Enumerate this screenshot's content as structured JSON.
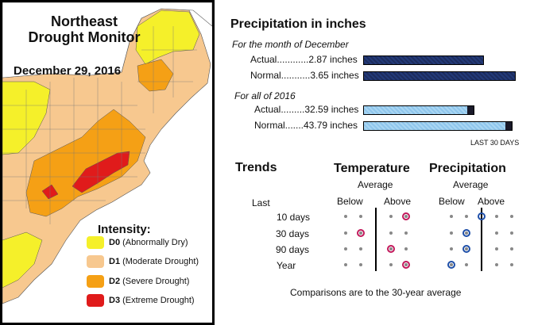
{
  "map": {
    "title_line1": "Northeast",
    "title_line2": "Drought Monitor",
    "date": "December 29, 2016",
    "legend": {
      "title": "Intensity:",
      "items": [
        {
          "code": "D0",
          "desc": "(Abnormally Dry)",
          "color": "#f5f02a"
        },
        {
          "code": "D1",
          "desc": "(Moderate Drought)",
          "color": "#f7c88f"
        },
        {
          "code": "D2",
          "desc": "(Severe Drought)",
          "color": "#f5a015"
        },
        {
          "code": "D3",
          "desc": "(Extreme Drought)",
          "color": "#e01b1b"
        }
      ]
    }
  },
  "precip": {
    "title": "Precipitation in inches",
    "december_label": "For the month of December",
    "december": [
      {
        "label": "Actual............2.87 inches",
        "value": 2.87
      },
      {
        "label": "Normal...........3.65 inches",
        "value": 3.65
      }
    ],
    "year_label": "For all of 2016",
    "year": [
      {
        "label": "Actual.........32.59 inches",
        "value": 32.59
      },
      {
        "label": "Normal.......43.79 inches",
        "value": 43.79
      }
    ],
    "last30": "LAST 30 DAYS"
  },
  "trends": {
    "title": "Trends",
    "temperature": "Temperature",
    "precipitation": "Precipitation",
    "average": "Average",
    "below": "Below",
    "above": "Above",
    "last": "Last",
    "rows": [
      "10 days",
      "30 days",
      "90 days",
      "Year"
    ],
    "temp_positions": [
      2,
      -1,
      1,
      2
    ],
    "precip_positions": [
      0,
      -1,
      -1,
      -2
    ],
    "temp_color": "#c2185b",
    "precip_color": "#1e4fa8",
    "footnote": "Comparisons are to the 30-year average"
  }
}
